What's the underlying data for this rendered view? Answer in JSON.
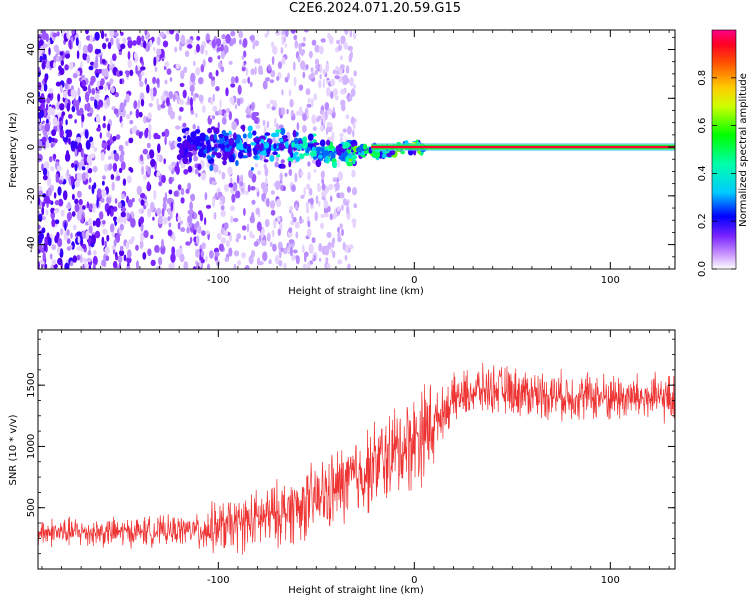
{
  "title": "C2E6.2024.071.20.59.G15",
  "colors": {
    "snr_line": "#ee3333",
    "axis": "#000000"
  },
  "chart_data": [
    {
      "type": "heatmap",
      "xlabel": "Height of straight line (km)",
      "ylabel": "Frequency (Hz)",
      "xlim": [
        -192,
        133
      ],
      "ylim": [
        -50,
        48
      ],
      "xticks": [
        -100,
        0,
        100
      ],
      "yticks": [
        -40,
        -20,
        0,
        20,
        40
      ],
      "colorbar": {
        "label": "Normalized spectral amplitude",
        "range": [
          0.0,
          1.0
        ],
        "ticks": [
          0.0,
          0.2,
          0.4,
          0.6,
          0.8
        ],
        "colormap": [
          "#ffffff",
          "#8844ff",
          "#2200ff",
          "#00ffff",
          "#00ff00",
          "#ffff00",
          "#ff8800",
          "#ff0000",
          "#ff0088"
        ]
      },
      "description_values": {
        "noise_region_km": [
          -192,
          -30
        ],
        "signal_frequency_hz": 0
      }
    },
    {
      "type": "line",
      "xlabel": "Height of straight line (km)",
      "ylabel": "SNR (10 * v/v)",
      "xlim": [
        -192,
        133
      ],
      "ylim": [
        0,
        1950
      ],
      "xticks": [
        -100,
        0,
        100
      ],
      "yticks": [
        500,
        1000,
        1500
      ],
      "series": [
        {
          "x": [
            -192,
            -170,
            -150,
            -130,
            -110,
            -100,
            -90,
            -80,
            -70,
            -60,
            -50,
            -40,
            -30,
            -20,
            -10,
            0,
            10,
            20,
            30,
            40,
            50,
            60,
            70,
            80,
            90,
            100,
            110,
            120,
            133
          ],
          "y": [
            300,
            300,
            300,
            310,
            320,
            340,
            360,
            400,
            450,
            500,
            570,
            650,
            750,
            850,
            950,
            1050,
            1200,
            1380,
            1450,
            1470,
            1450,
            1430,
            1420,
            1410,
            1410,
            1400,
            1400,
            1390,
            1390
          ]
        }
      ]
    }
  ]
}
